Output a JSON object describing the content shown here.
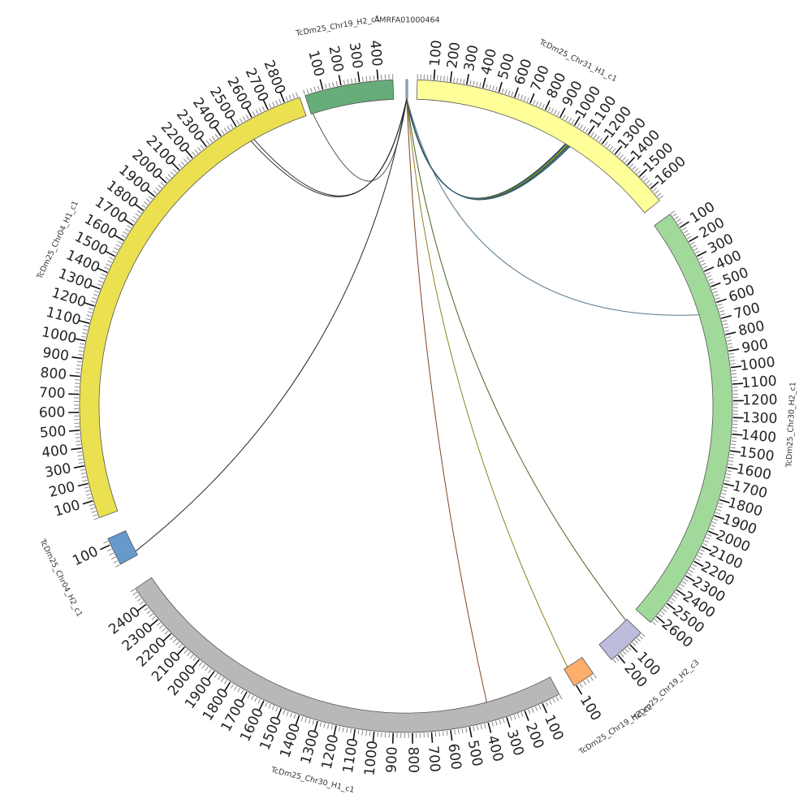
{
  "chart_data": {
    "type": "chord",
    "segments": [
      {
        "id": "AMRFA01000464",
        "label": "AMRFA01000464",
        "length": 18,
        "color": "#a6cee3",
        "ticks": []
      },
      {
        "id": "chr31_h1",
        "label": "TcDm25_Chr31_H1_c1",
        "length": 1690,
        "color": "#ffff99",
        "ticks": [
          100,
          200,
          300,
          400,
          500,
          600,
          700,
          800,
          900,
          1000,
          1100,
          1200,
          1300,
          1400,
          1500,
          1600
        ]
      },
      {
        "id": "chr30_h2",
        "label": "TcDm25_Chr30_H2_c1",
        "length": 2650,
        "color": "#a1d99b",
        "ticks": [
          100,
          200,
          300,
          400,
          500,
          600,
          700,
          800,
          900,
          1000,
          1100,
          1200,
          1300,
          1400,
          1500,
          1600,
          1700,
          1800,
          1900,
          2000,
          2100,
          2200,
          2300,
          2400,
          2500,
          2600
        ]
      },
      {
        "id": "chr19_h2_c3",
        "label": "TcDm25_Chr19_H2_c3",
        "length": 250,
        "color": "#bcbddc",
        "ticks": [
          100,
          200
        ]
      },
      {
        "id": "chr19_h2_c2",
        "label": "TcDm25_Chr19_H2_c2",
        "length": 110,
        "color": "#fdae6b",
        "ticks": [
          100
        ]
      },
      {
        "id": "chr30_h1",
        "label": "TcDm25_Chr30_H1_c1",
        "length": 2500,
        "color": "#b8b8b8",
        "ticks": [
          100,
          200,
          300,
          400,
          500,
          600,
          700,
          800,
          900,
          1000,
          1100,
          1200,
          1300,
          1400,
          1500,
          1600,
          1700,
          1800,
          1900,
          2000,
          2100,
          2200,
          2300,
          2400
        ]
      },
      {
        "id": "chr04_h2",
        "label": "TcDm25_Chr04_H2_c1",
        "length": 130,
        "color": "#6699cc",
        "ticks": [
          100
        ]
      },
      {
        "id": "chr04_h1",
        "label": "TcDm25_Chr04_H1_c1",
        "length": 2890,
        "color": "#ebe050",
        "ticks": [
          100,
          200,
          300,
          400,
          500,
          600,
          700,
          800,
          900,
          1000,
          1100,
          1200,
          1300,
          1400,
          1500,
          1600,
          1700,
          1800,
          1900,
          2000,
          2100,
          2200,
          2300,
          2400,
          2500,
          2600,
          2700,
          2800
        ]
      },
      {
        "id": "chr19_h2_c1",
        "label": "TcDm25_Chr19_H2_c1",
        "length": 480,
        "color": "#66ad7a",
        "ticks": [
          100,
          200,
          300,
          400
        ]
      }
    ],
    "links": [
      {
        "from": "AMRFA01000464",
        "from_pos": 3,
        "to": "chr31_h1",
        "to_pos": 1010,
        "color": "#2a6aa8"
      },
      {
        "from": "AMRFA01000464",
        "from_pos": 4,
        "to": "chr31_h1",
        "to_pos": 1015,
        "color": "#1a1a1a"
      },
      {
        "from": "AMRFA01000464",
        "from_pos": 5,
        "to": "chr31_h1",
        "to_pos": 1020,
        "color": "#6b8c1e"
      },
      {
        "from": "AMRFA01000464",
        "from_pos": 6,
        "to": "chr31_h1",
        "to_pos": 1025,
        "color": "#9ab322"
      },
      {
        "from": "AMRFA01000464",
        "from_pos": 7,
        "to": "chr31_h1",
        "to_pos": 1030,
        "color": "#3a3a3a"
      },
      {
        "from": "AMRFA01000464",
        "from_pos": 8,
        "to": "chr31_h1",
        "to_pos": 1035,
        "color": "#2b4f9a"
      },
      {
        "from": "AMRFA01000464",
        "from_pos": 9,
        "to": "chr31_h1",
        "to_pos": 1040,
        "color": "#4a7a3a"
      },
      {
        "from": "AMRFA01000464",
        "from_pos": 10,
        "to": "chr31_h1",
        "to_pos": 1045,
        "color": "#1f4f7f"
      },
      {
        "from": "AMRFA01000464",
        "from_pos": 11,
        "to": "chr30_h2",
        "to_pos": 640,
        "color": "#4d6f86"
      },
      {
        "from": "AMRFA01000464",
        "from_pos": 7,
        "to": "chr19_h2_c1",
        "to_pos": 10,
        "color": "#2e4c3a"
      },
      {
        "from": "AMRFA01000464",
        "from_pos": 6,
        "to": "chr04_h1",
        "to_pos": 2530,
        "color": "#222222"
      },
      {
        "from": "AMRFA01000464",
        "from_pos": 7,
        "to": "chr04_h1",
        "to_pos": 2550,
        "color": "#222222"
      },
      {
        "from": "AMRFA01000464",
        "from_pos": 6,
        "to": "chr04_h2",
        "to_pos": 20,
        "color": "#1a1a1a"
      },
      {
        "from": "AMRFA01000464",
        "from_pos": 9,
        "to": "chr19_h2_c3",
        "to_pos": 10,
        "color": "#3d5a1e"
      },
      {
        "from": "AMRFA01000464",
        "from_pos": 10,
        "to": "chr19_h2_c2",
        "to_pos": 90,
        "color": "#8a7a10"
      },
      {
        "from": "AMRFA01000464",
        "from_pos": 8,
        "to": "chr30_h1",
        "to_pos": 380,
        "color": "#7a3a1a"
      }
    ]
  }
}
